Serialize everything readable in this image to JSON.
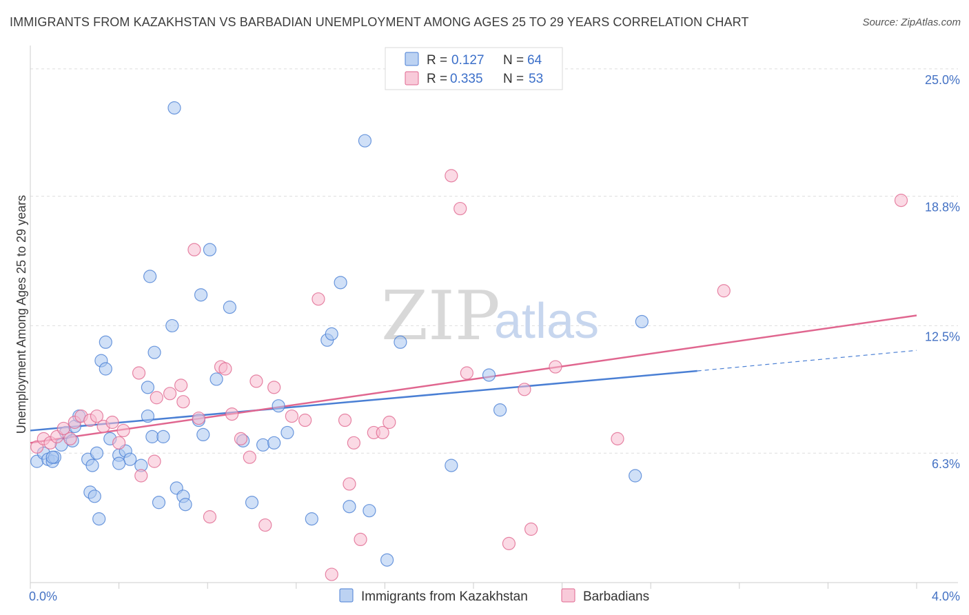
{
  "title": "IMMIGRANTS FROM KAZAKHSTAN VS BARBADIAN UNEMPLOYMENT AMONG AGES 25 TO 29 YEARS CORRELATION CHART",
  "source": "Source: ZipAtlas.com",
  "watermark": {
    "zip": "ZIP",
    "atlas": "atlas"
  },
  "legend": {
    "r_label": "R =",
    "n_label": "N =",
    "rows": [
      {
        "r": "0.127",
        "n": "64",
        "color": "#8fb4ea"
      },
      {
        "r": "0.335",
        "n": "53",
        "color": "#f4a7c0"
      }
    ]
  },
  "chart_data": {
    "type": "scatter",
    "xlabel": "",
    "ylabel": "Unemployment Among Ages 25 to 29 years",
    "xlim": [
      0,
      4.0
    ],
    "ylim": [
      0,
      25.7
    ],
    "x_tick_labels": [
      {
        "value": 0,
        "label": "0.0%"
      },
      {
        "value": 4.0,
        "label": "4.0%"
      }
    ],
    "y_tick_labels": [
      {
        "value": 6.3,
        "label": "6.3%"
      },
      {
        "value": 12.5,
        "label": "12.5%"
      },
      {
        "value": 18.8,
        "label": "18.8%"
      },
      {
        "value": 25.0,
        "label": "25.0%"
      }
    ],
    "grid": "horizontal dashed",
    "legend_position": "top-center",
    "series": [
      {
        "name": "Immigrants from Kazakhstan",
        "color": "#4a7fd4",
        "fill": "#aac6f0",
        "trend": {
          "x0": 0,
          "y0": 7.4,
          "x1": 3.01,
          "y1": 10.3,
          "dash_to_x": 4.0,
          "dash_to_y": 11.3
        },
        "points": [
          [
            0.03,
            5.9
          ],
          [
            0.06,
            6.3
          ],
          [
            0.08,
            6.0
          ],
          [
            0.1,
            5.9
          ],
          [
            0.14,
            6.7
          ],
          [
            0.16,
            7.3
          ],
          [
            0.19,
            6.9
          ],
          [
            0.11,
            6.1
          ],
          [
            0.2,
            7.6
          ],
          [
            0.22,
            8.1
          ],
          [
            0.26,
            6.0
          ],
          [
            0.3,
            6.3
          ],
          [
            0.28,
            5.7
          ],
          [
            0.36,
            7.0
          ],
          [
            0.4,
            6.2
          ],
          [
            0.43,
            6.4
          ],
          [
            0.45,
            6.0
          ],
          [
            0.5,
            5.7
          ],
          [
            0.55,
            7.1
          ],
          [
            0.4,
            5.8
          ],
          [
            0.27,
            4.4
          ],
          [
            0.29,
            4.2
          ],
          [
            0.31,
            3.1
          ],
          [
            0.53,
            8.1
          ],
          [
            0.58,
            3.9
          ],
          [
            0.66,
            4.6
          ],
          [
            0.69,
            4.2
          ],
          [
            0.7,
            3.8
          ],
          [
            0.53,
            9.5
          ],
          [
            0.56,
            11.2
          ],
          [
            0.6,
            7.1
          ],
          [
            0.64,
            12.5
          ],
          [
            0.76,
            7.9
          ],
          [
            0.78,
            7.2
          ],
          [
            0.81,
            16.2
          ],
          [
            0.84,
            9.9
          ],
          [
            0.9,
            13.4
          ],
          [
            0.96,
            6.9
          ],
          [
            1.0,
            3.9
          ],
          [
            1.05,
            6.7
          ],
          [
            1.1,
            6.8
          ],
          [
            1.12,
            8.6
          ],
          [
            1.16,
            7.3
          ],
          [
            1.27,
            3.1
          ],
          [
            1.34,
            11.8
          ],
          [
            1.36,
            12.1
          ],
          [
            1.4,
            14.6
          ],
          [
            1.44,
            3.7
          ],
          [
            1.51,
            21.5
          ],
          [
            1.53,
            3.5
          ],
          [
            1.67,
            11.7
          ],
          [
            1.9,
            5.7
          ],
          [
            1.61,
            1.1
          ],
          [
            2.07,
            10.1
          ],
          [
            2.12,
            8.4
          ],
          [
            2.76,
            12.7
          ],
          [
            2.73,
            5.2
          ],
          [
            0.65,
            23.1
          ],
          [
            0.54,
            14.9
          ],
          [
            0.77,
            14.0
          ],
          [
            0.34,
            11.7
          ],
          [
            0.32,
            10.8
          ],
          [
            0.34,
            10.4
          ],
          [
            0.1,
            6.1
          ]
        ]
      },
      {
        "name": "Barbadians",
        "color": "#e0668f",
        "fill": "#f7bcd0",
        "trend": {
          "x0": 0,
          "y0": 6.8,
          "x1": 4.0,
          "y1": 13.0
        },
        "points": [
          [
            0.03,
            6.6
          ],
          [
            0.06,
            7.0
          ],
          [
            0.09,
            6.8
          ],
          [
            0.12,
            7.1
          ],
          [
            0.15,
            7.5
          ],
          [
            0.18,
            7.0
          ],
          [
            0.2,
            7.8
          ],
          [
            0.23,
            8.1
          ],
          [
            0.27,
            7.9
          ],
          [
            0.3,
            8.1
          ],
          [
            0.33,
            7.6
          ],
          [
            0.37,
            7.8
          ],
          [
            0.4,
            6.8
          ],
          [
            0.42,
            7.4
          ],
          [
            0.49,
            10.2
          ],
          [
            0.5,
            5.2
          ],
          [
            0.56,
            5.9
          ],
          [
            0.57,
            9.0
          ],
          [
            0.63,
            9.2
          ],
          [
            0.68,
            9.6
          ],
          [
            0.69,
            8.8
          ],
          [
            0.74,
            16.2
          ],
          [
            0.76,
            8.0
          ],
          [
            0.81,
            3.2
          ],
          [
            0.86,
            10.5
          ],
          [
            0.88,
            10.4
          ],
          [
            0.91,
            8.2
          ],
          [
            0.95,
            7.0
          ],
          [
            0.99,
            6.1
          ],
          [
            1.02,
            9.8
          ],
          [
            1.06,
            2.8
          ],
          [
            1.1,
            9.5
          ],
          [
            1.18,
            8.1
          ],
          [
            1.24,
            7.9
          ],
          [
            1.3,
            13.8
          ],
          [
            1.36,
            0.4
          ],
          [
            1.42,
            7.9
          ],
          [
            1.44,
            4.8
          ],
          [
            1.46,
            6.8
          ],
          [
            1.49,
            2.1
          ],
          [
            1.55,
            7.3
          ],
          [
            1.59,
            7.3
          ],
          [
            1.62,
            7.8
          ],
          [
            1.9,
            19.8
          ],
          [
            1.94,
            18.2
          ],
          [
            1.97,
            10.2
          ],
          [
            2.16,
            1.9
          ],
          [
            2.23,
            9.4
          ],
          [
            2.26,
            2.6
          ],
          [
            2.37,
            10.5
          ],
          [
            2.65,
            7.0
          ],
          [
            3.13,
            14.2
          ],
          [
            3.93,
            18.6
          ]
        ]
      }
    ]
  }
}
